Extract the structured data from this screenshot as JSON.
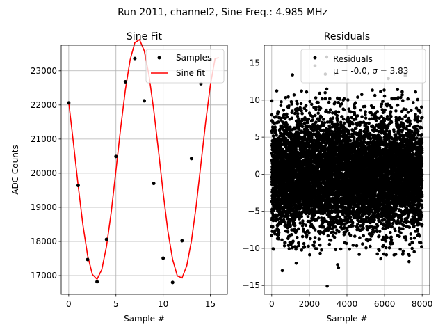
{
  "figure": {
    "suptitle": "Run 2011, channel2, Sine Freq.: 4.985 MHz"
  },
  "chart_data": [
    {
      "type": "scatter",
      "title": "Sine Fit",
      "xlabel": "Sample #",
      "ylabel": "ADC Counts",
      "xlim": [
        -0.8,
        16.8
      ],
      "ylim": [
        16450,
        23750
      ],
      "xticks": [
        0,
        5,
        10,
        15
      ],
      "yticks": [
        17000,
        18000,
        19000,
        20000,
        21000,
        22000,
        23000
      ],
      "grid": true,
      "legend_position": "top-right",
      "series": [
        {
          "name": "Samples",
          "kind": "markers",
          "color": "#000000",
          "x": [
            0,
            1,
            2,
            3,
            4,
            5,
            6,
            7,
            8,
            9,
            10,
            11,
            12,
            13,
            14,
            15
          ],
          "y": [
            22060,
            19640,
            17470,
            16820,
            18060,
            20490,
            22680,
            23360,
            22120,
            19700,
            17510,
            16800,
            18020,
            20430,
            22620,
            23330
          ]
        },
        {
          "name": "Sine fit",
          "kind": "line",
          "color": "#ff0000",
          "x": [
            0,
            0.5,
            1,
            1.5,
            2,
            2.5,
            3,
            3.5,
            4,
            4.5,
            5,
            5.5,
            6,
            6.5,
            7,
            7.5,
            8,
            8.5,
            9,
            9.5,
            10,
            10.5,
            11,
            11.5,
            12,
            12.5,
            13,
            13.5,
            14,
            14.5,
            15,
            15.5,
            15.9
          ],
          "y": [
            22076,
            20879,
            19630,
            18487,
            17588,
            17036,
            16893,
            17177,
            17856,
            18859,
            20079,
            21327,
            22450,
            23319,
            23826,
            23915,
            23583,
            22868,
            21853,
            20667,
            19421,
            18300,
            17473,
            16990,
            16932,
            17291,
            18022,
            19047,
            20275,
            21498,
            22582,
            23360,
            23383
          ]
        }
      ]
    },
    {
      "type": "scatter",
      "title": "Residuals",
      "xlabel": "Sample #",
      "ylabel": "",
      "xlim": [
        -400,
        8400
      ],
      "ylim": [
        -16.2,
        17.4
      ],
      "xticks": [
        0,
        2000,
        4000,
        6000,
        8000
      ],
      "yticks": [
        -15,
        -10,
        -5,
        0,
        5,
        10,
        15
      ],
      "grid": true,
      "legend_position": "top-right",
      "n_points": 8000,
      "mu": -0.0,
      "sigma": 3.83,
      "outliers": [
        {
          "x": 2950,
          "y": -15.1
        },
        {
          "x": 2920,
          "y": 15.8
        },
        {
          "x": 2300,
          "y": 14.6
        },
        {
          "x": 2850,
          "y": 13.5
        },
        {
          "x": 1100,
          "y": 13.4
        },
        {
          "x": 7100,
          "y": 13.3
        },
        {
          "x": 560,
          "y": -13.0
        },
        {
          "x": 3500,
          "y": -12.2
        },
        {
          "x": 3550,
          "y": -12.6
        },
        {
          "x": 1300,
          "y": -12.0
        },
        {
          "x": 7300,
          "y": -11.8
        },
        {
          "x": 6200,
          "y": 12.9
        },
        {
          "x": 5800,
          "y": -11.4
        }
      ],
      "series": [
        {
          "name": "Residuals",
          "label": "μ = -0.0, σ = 3.83",
          "kind": "markers",
          "color": "#000000"
        }
      ]
    }
  ]
}
